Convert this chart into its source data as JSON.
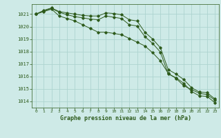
{
  "title": "Graphe pression niveau de la mer (hPa)",
  "bg_color": "#ceeae7",
  "grid_color": "#add4d0",
  "line_color": "#2d5a1b",
  "x_labels": [
    "0",
    "1",
    "2",
    "3",
    "4",
    "5",
    "6",
    "7",
    "8",
    "9",
    "10",
    "11",
    "12",
    "13",
    "14",
    "15",
    "16",
    "17",
    "18",
    "19",
    "20",
    "21",
    "22",
    "23"
  ],
  "ylim": [
    1013.5,
    1021.8
  ],
  "yticks": [
    1014,
    1015,
    1016,
    1017,
    1018,
    1019,
    1020,
    1021
  ],
  "line1": [
    1021.0,
    1021.3,
    1021.5,
    1021.2,
    1021.1,
    1021.0,
    1020.9,
    1020.85,
    1020.85,
    1021.1,
    1021.05,
    1020.95,
    1020.55,
    1020.45,
    1019.55,
    1019.0,
    1018.3,
    1016.55,
    1016.2,
    1015.75,
    1015.1,
    1014.75,
    1014.7,
    1014.2
  ],
  "line2": [
    1021.0,
    1021.25,
    1021.45,
    1021.15,
    1020.95,
    1020.8,
    1020.7,
    1020.6,
    1020.55,
    1020.85,
    1020.75,
    1020.65,
    1020.15,
    1020.05,
    1019.2,
    1018.65,
    1017.95,
    1016.2,
    1015.9,
    1015.45,
    1014.8,
    1014.45,
    1014.4,
    1013.9
  ],
  "line3": [
    1021.0,
    1021.2,
    1021.4,
    1020.85,
    1020.65,
    1020.45,
    1020.15,
    1019.85,
    1019.55,
    1019.55,
    1019.45,
    1019.35,
    1019.05,
    1018.75,
    1018.45,
    1017.9,
    1017.25,
    1016.25,
    1015.85,
    1015.25,
    1014.95,
    1014.65,
    1014.55,
    1014.1
  ]
}
